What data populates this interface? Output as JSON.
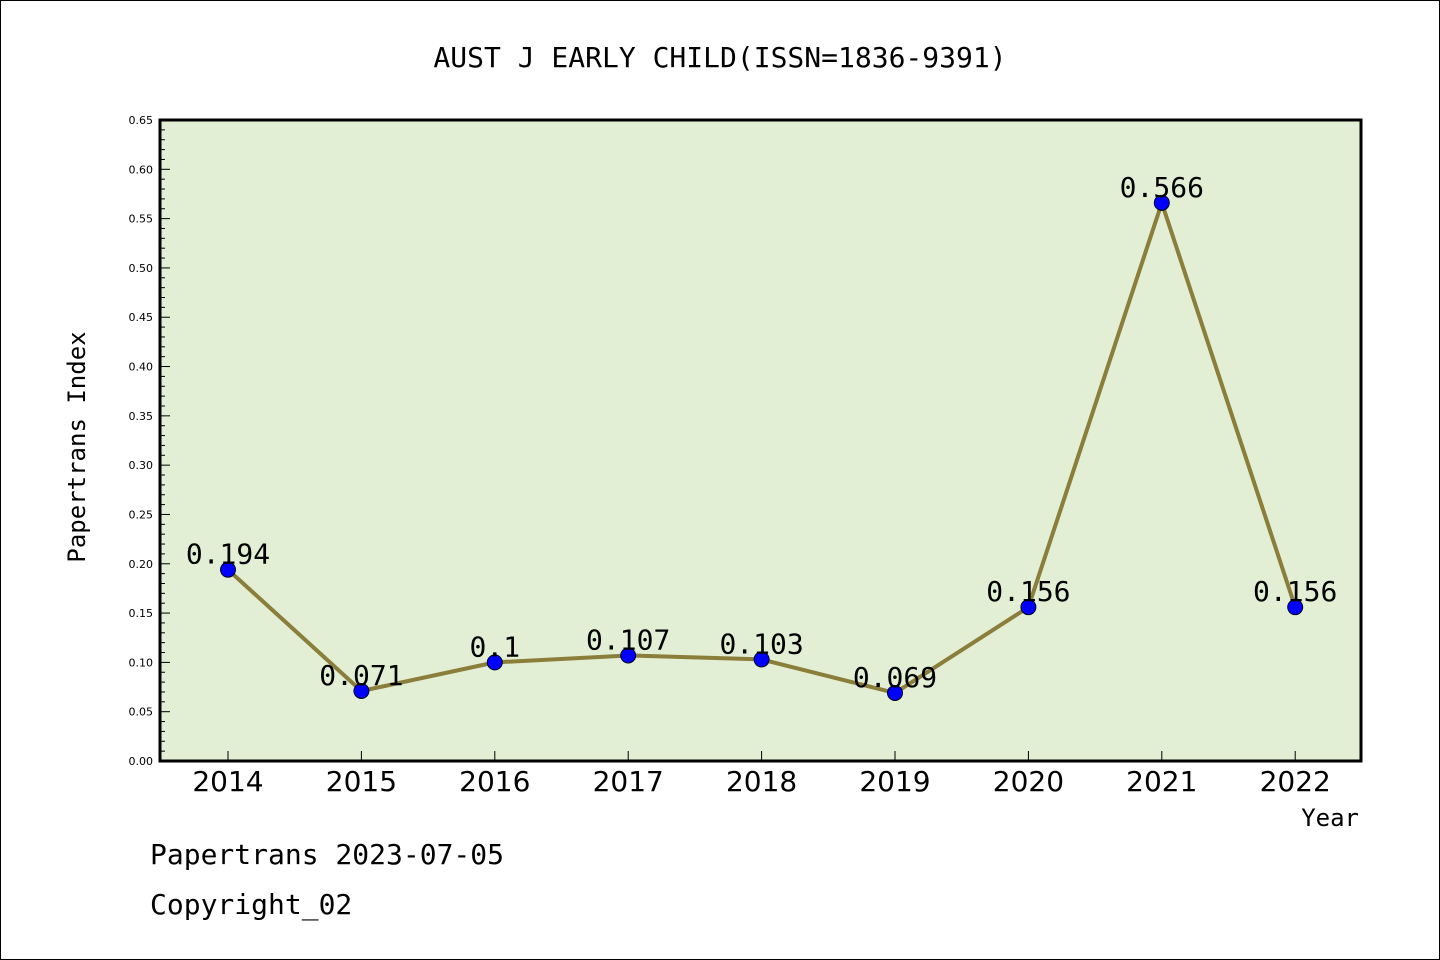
{
  "chart_data": {
    "type": "line",
    "title": "AUST J EARLY CHILD(ISSN=1836-9391)",
    "xlabel": "Year",
    "ylabel": "Papertrans Index",
    "ylim": [
      0,
      0.65
    ],
    "yticks": [
      "0.00",
      "0.05",
      "0.10",
      "0.15",
      "0.20",
      "0.25",
      "0.30",
      "0.35",
      "0.40",
      "0.45",
      "0.50",
      "0.55",
      "0.60",
      "0.65"
    ],
    "categories": [
      "2014",
      "2015",
      "2016",
      "2017",
      "2018",
      "2019",
      "2020",
      "2021",
      "2022"
    ],
    "series": [
      {
        "values": [
          0.194,
          0.071,
          0.1,
          0.107,
          0.103,
          0.069,
          0.156,
          0.566,
          0.156
        ],
        "labels": [
          "0.194",
          "0.071",
          "0.1",
          "0.107",
          "0.103",
          "0.069",
          "0.156",
          "0.566",
          "0.156"
        ]
      }
    ],
    "grid": false,
    "colors": {
      "plot_bg": "#e2efd4",
      "line": "#8b7d3a",
      "marker": "#0000ff"
    }
  },
  "footer": {
    "line1": "Papertrans 2023-07-05",
    "line2": "Copyright_02"
  }
}
